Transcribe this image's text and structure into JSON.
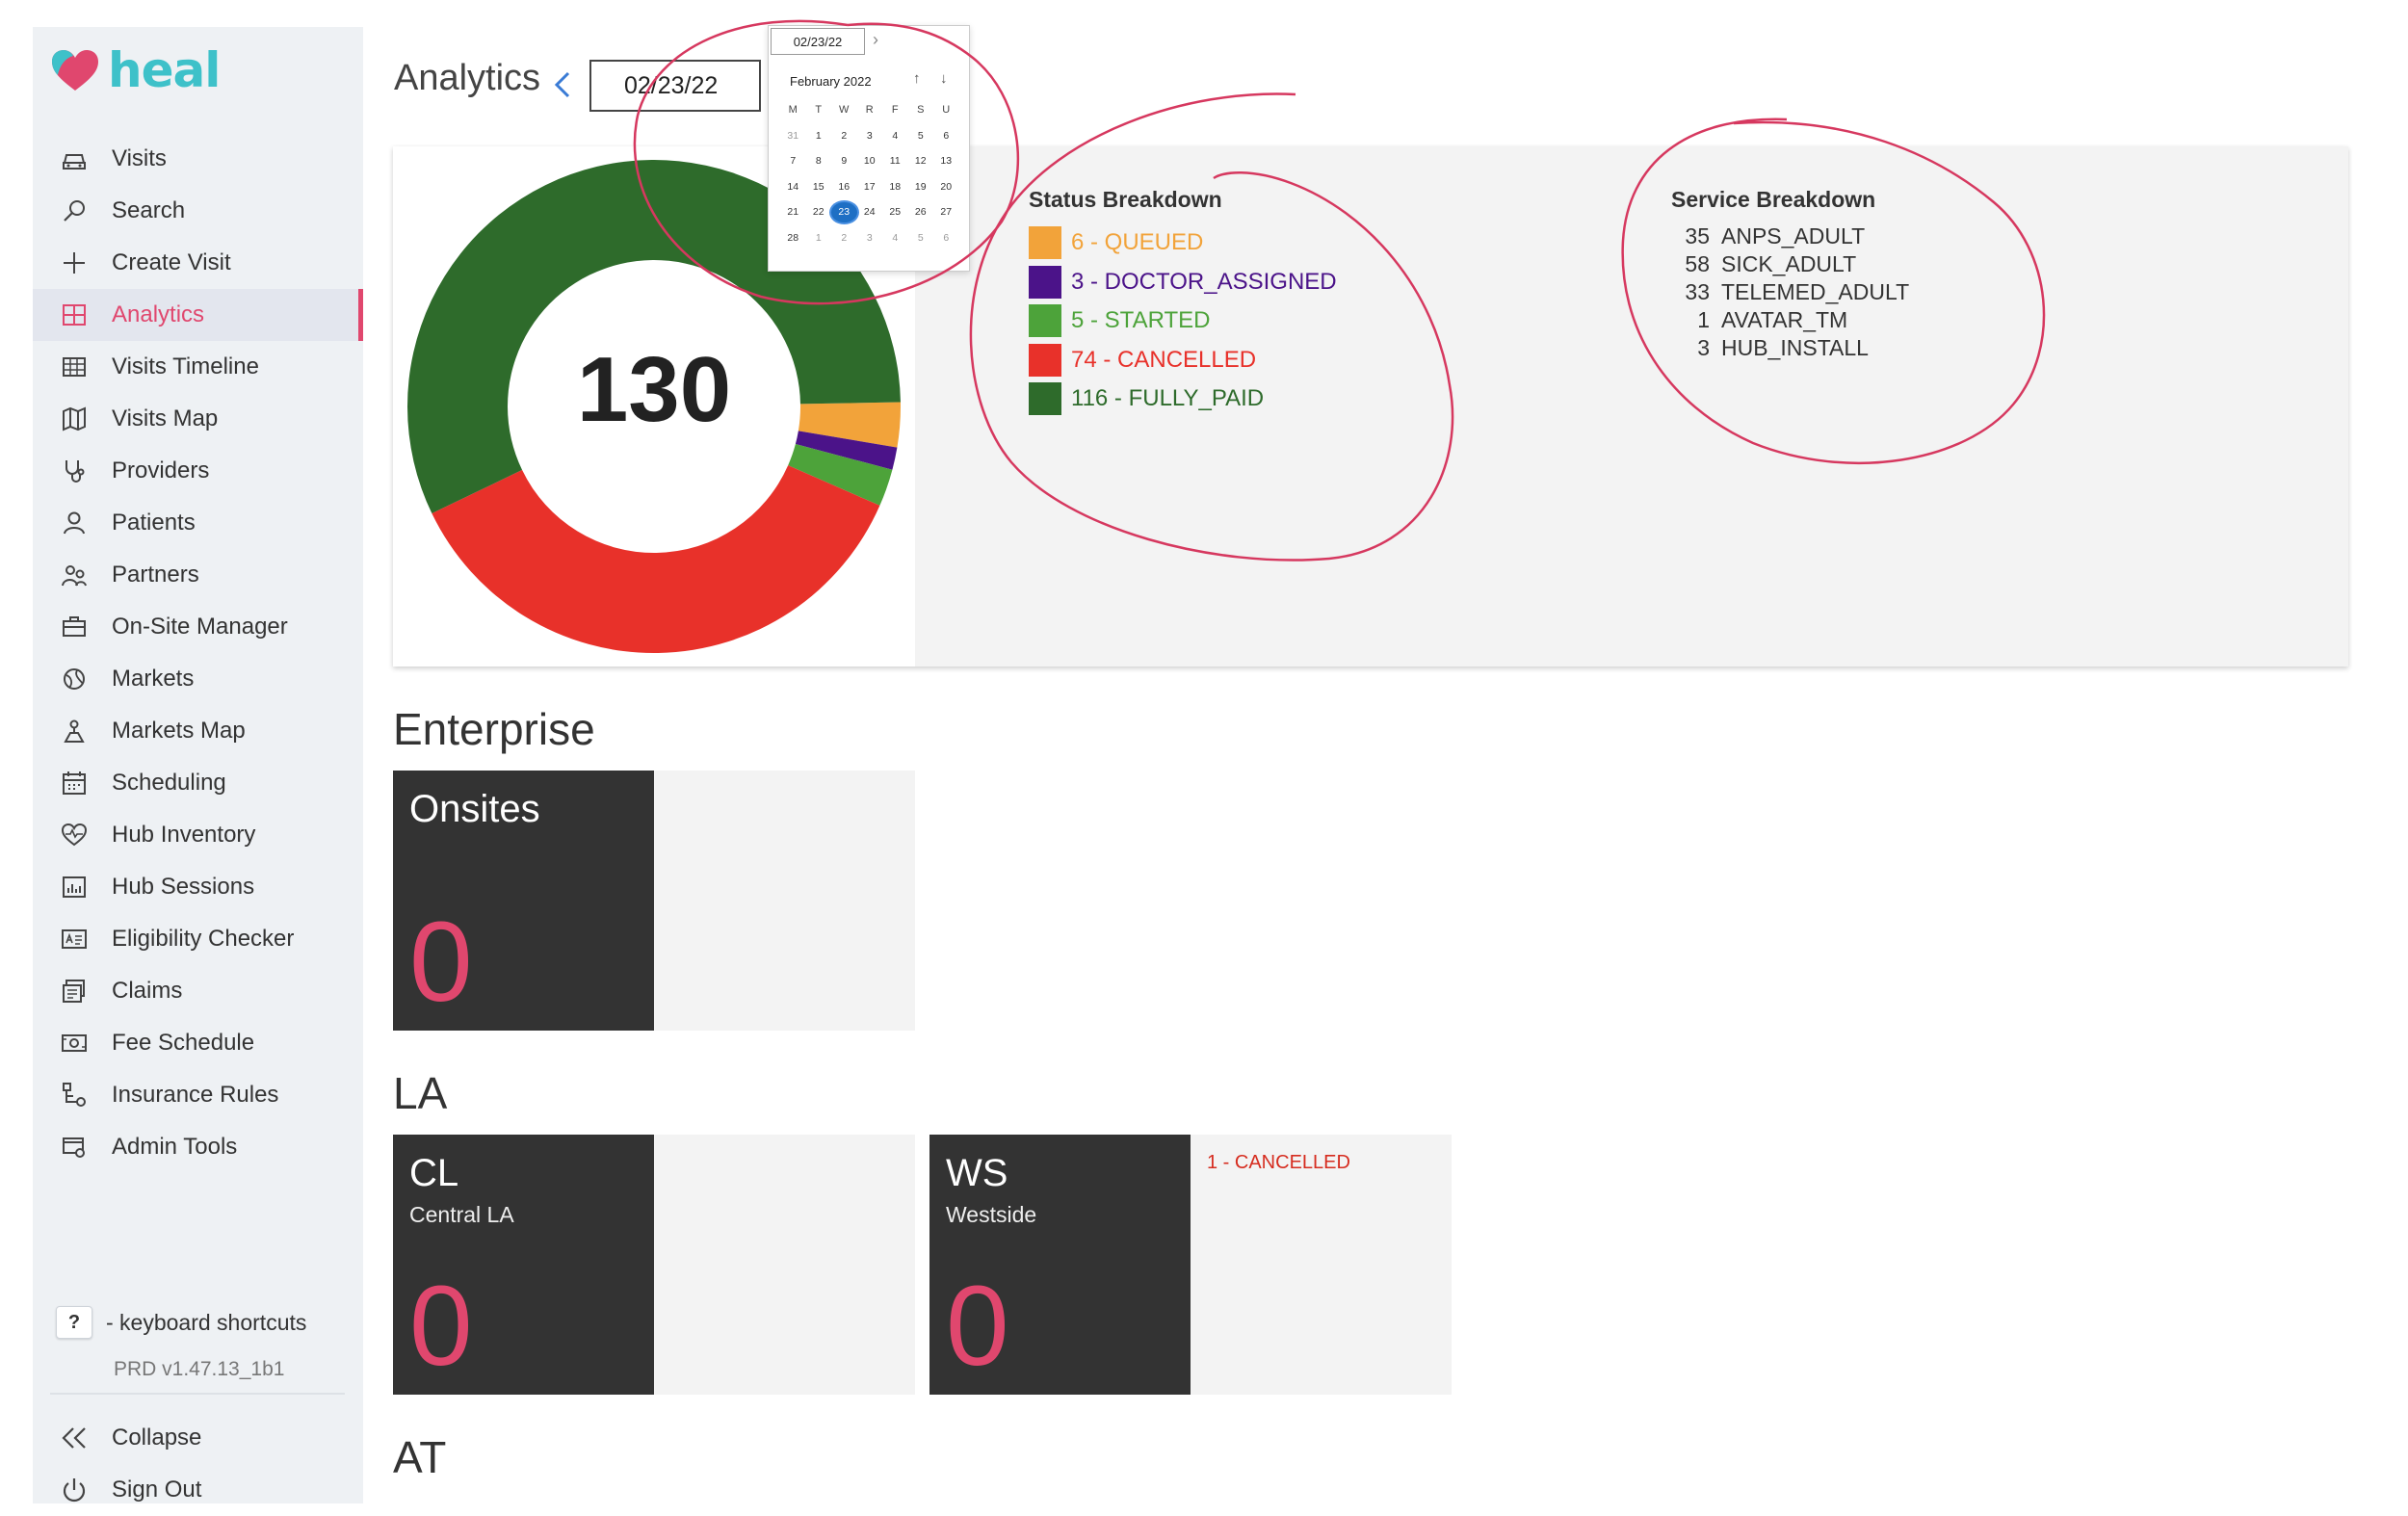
{
  "app": {
    "logo_text": "heal",
    "brand_color": "#e0476e",
    "accent_color": "#3ec1c9"
  },
  "sidebar": {
    "items": [
      {
        "label": "Visits",
        "icon": "car-icon"
      },
      {
        "label": "Search",
        "icon": "search-icon"
      },
      {
        "label": "Create Visit",
        "icon": "plus-icon"
      },
      {
        "label": "Analytics",
        "icon": "dashboard-icon",
        "active": true
      },
      {
        "label": "Visits Timeline",
        "icon": "timeline-icon"
      },
      {
        "label": "Visits Map",
        "icon": "map-icon"
      },
      {
        "label": "Providers",
        "icon": "stethoscope-icon"
      },
      {
        "label": "Patients",
        "icon": "person-icon"
      },
      {
        "label": "Partners",
        "icon": "partners-icon"
      },
      {
        "label": "On-Site Manager",
        "icon": "briefcase-icon"
      },
      {
        "label": "Markets",
        "icon": "globe-icon"
      },
      {
        "label": "Markets Map",
        "icon": "map-pin-icon"
      },
      {
        "label": "Scheduling",
        "icon": "calendar-icon"
      },
      {
        "label": "Hub Inventory",
        "icon": "heart-pulse-icon"
      },
      {
        "label": "Hub Sessions",
        "icon": "bar-chart-icon"
      },
      {
        "label": "Eligibility Checker",
        "icon": "id-card-icon"
      },
      {
        "label": "Claims",
        "icon": "claims-icon"
      },
      {
        "label": "Fee Schedule",
        "icon": "money-icon"
      },
      {
        "label": "Insurance Rules",
        "icon": "rules-icon"
      },
      {
        "label": "Admin Tools",
        "icon": "admin-icon"
      }
    ],
    "shortcut_key": "?",
    "shortcut_label": "- keyboard shortcuts",
    "version": "PRD v1.47.13_1b1",
    "collapse_label": "Collapse",
    "signout_label": "Sign Out"
  },
  "header": {
    "title": "Analytics",
    "date": "02/23/22"
  },
  "datepicker": {
    "input_value": "02/23/22",
    "month_label": "February 2022",
    "weekdays": [
      "M",
      "T",
      "W",
      "R",
      "F",
      "S",
      "U"
    ],
    "weeks": [
      [
        "31",
        "1",
        "2",
        "3",
        "4",
        "5",
        "6"
      ],
      [
        "7",
        "8",
        "9",
        "10",
        "11",
        "12",
        "13"
      ],
      [
        "14",
        "15",
        "16",
        "17",
        "18",
        "19",
        "20"
      ],
      [
        "21",
        "22",
        "23",
        "24",
        "25",
        "26",
        "27"
      ],
      [
        "28",
        "1",
        "2",
        "3",
        "4",
        "5",
        "6"
      ]
    ],
    "selected": "23"
  },
  "summary": {
    "total": "130",
    "status_title": "Status Breakdown",
    "status": [
      {
        "count": 6,
        "label": "6 - QUEUED",
        "color": "#f2a33a"
      },
      {
        "count": 3,
        "label": "3 - DOCTOR_ASSIGNED",
        "color": "#4b1389"
      },
      {
        "count": 5,
        "label": "5 - STARTED",
        "color": "#4da33a"
      },
      {
        "count": 74,
        "label": "74 - CANCELLED",
        "color": "#e8312a"
      },
      {
        "count": 116,
        "label": "116 - FULLY_PAID",
        "color": "#2e6b2b"
      }
    ],
    "service_title": "Service Breakdown",
    "services": [
      {
        "count": "35",
        "name": "ANPS_ADULT"
      },
      {
        "count": "58",
        "name": "SICK_ADULT"
      },
      {
        "count": "33",
        "name": "TELEMED_ADULT"
      },
      {
        "count": "1",
        "name": "AVATAR_TM"
      },
      {
        "count": "3",
        "name": "HUB_INSTALL"
      }
    ]
  },
  "sections": {
    "enterprise": {
      "title": "Enterprise",
      "cards": [
        {
          "code": "Onsites",
          "sub": "",
          "count": "0",
          "status": ""
        }
      ]
    },
    "la": {
      "title": "LA",
      "cards": [
        {
          "code": "CL",
          "sub": "Central LA",
          "count": "0",
          "status": ""
        },
        {
          "code": "WS",
          "sub": "Westside",
          "count": "0",
          "status": "1 - CANCELLED"
        }
      ]
    },
    "at": {
      "title": "AT"
    }
  },
  "annotation_color": "#d6385f"
}
